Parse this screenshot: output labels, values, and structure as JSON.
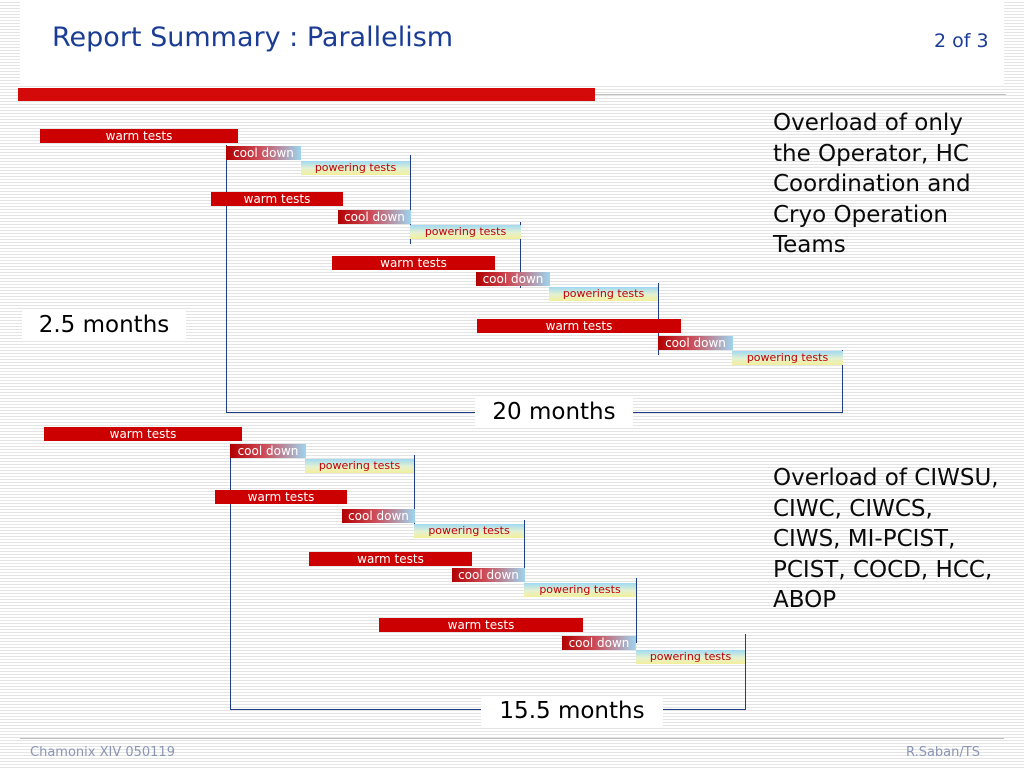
{
  "slide": {
    "title": "Report Summary : Parallelism",
    "page": "2 of 3",
    "footer_left": "Chamonix XIV 050119",
    "footer_right": "R.Saban/TS"
  },
  "labels": {
    "warm": "warm tests",
    "cool_a": "cool ",
    "cool_b": "down",
    "power": "powering tests"
  },
  "diagram1": {
    "duration_short": "2.5 months",
    "duration_total": "20 months",
    "note": "Overload of only the Operator, HC Coordination and Cryo Operation Teams"
  },
  "diagram2": {
    "duration_total": "15.5 months",
    "note": "Overload of CIWSU, CIWC, CIWCS, CIWS, MI-PCIST, PCIST, COCD, HCC, ABOP"
  },
  "colors": {
    "title": "#1a3c94",
    "warm": "#cc0000",
    "powering_text": "#c00000",
    "lines": "#1e3d84"
  }
}
